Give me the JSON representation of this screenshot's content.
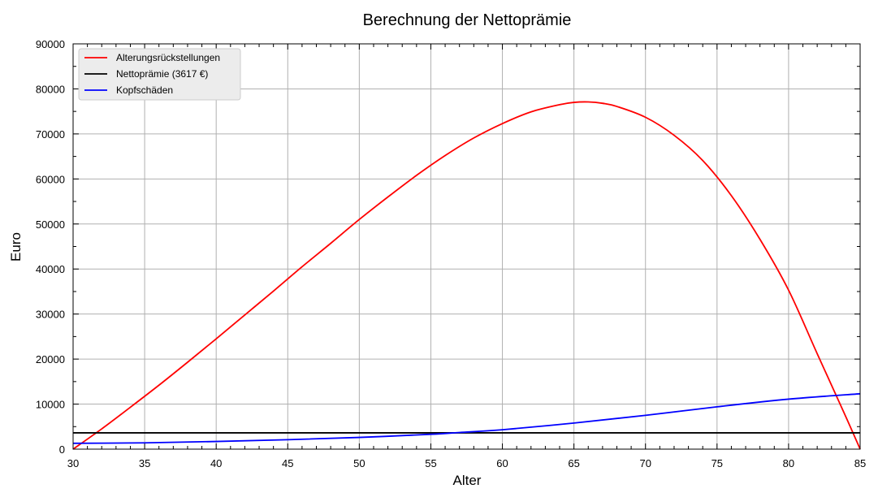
{
  "chart_data": {
    "type": "line",
    "title": "Berechnung der Nettoprämie",
    "xlabel": "Alter",
    "ylabel": "Euro",
    "xlim": [
      30,
      85
    ],
    "ylim": [
      0,
      90000
    ],
    "xticks": [
      30,
      35,
      40,
      45,
      50,
      55,
      60,
      65,
      70,
      75,
      80,
      85
    ],
    "yticks": [
      0,
      10000,
      20000,
      30000,
      40000,
      50000,
      60000,
      70000,
      80000,
      90000
    ],
    "grid": true,
    "legend_position": "top-left",
    "series": [
      {
        "name": "Alterungsrückstellungen",
        "color": "#ff0000",
        "x": [
          30,
          32,
          34,
          36,
          38,
          40,
          42,
          44,
          46,
          48,
          50,
          52,
          54,
          56,
          58,
          60,
          62,
          64,
          65,
          66,
          67,
          68,
          70,
          72,
          74,
          76,
          78,
          80,
          82,
          84,
          85
        ],
        "y": [
          0,
          4500,
          9300,
          14200,
          19300,
          24500,
          29800,
          35100,
          40500,
          45700,
          51000,
          56000,
          60800,
          65200,
          69100,
          72300,
          74900,
          76500,
          77000,
          77100,
          76800,
          76100,
          73700,
          69700,
          64100,
          56300,
          46600,
          35300,
          21200,
          7200,
          0
        ]
      },
      {
        "name": "Nettoprämie (3617 €)",
        "color": "#000000",
        "x": [
          30,
          85
        ],
        "y": [
          3617,
          3617
        ]
      },
      {
        "name": "Kopfschäden",
        "color": "#0000ff",
        "x": [
          30,
          35,
          40,
          45,
          50,
          55,
          57,
          60,
          65,
          70,
          75,
          80,
          85
        ],
        "y": [
          1300,
          1400,
          1700,
          2100,
          2600,
          3300,
          3700,
          4300,
          5800,
          7500,
          9400,
          11100,
          12300
        ]
      }
    ]
  }
}
